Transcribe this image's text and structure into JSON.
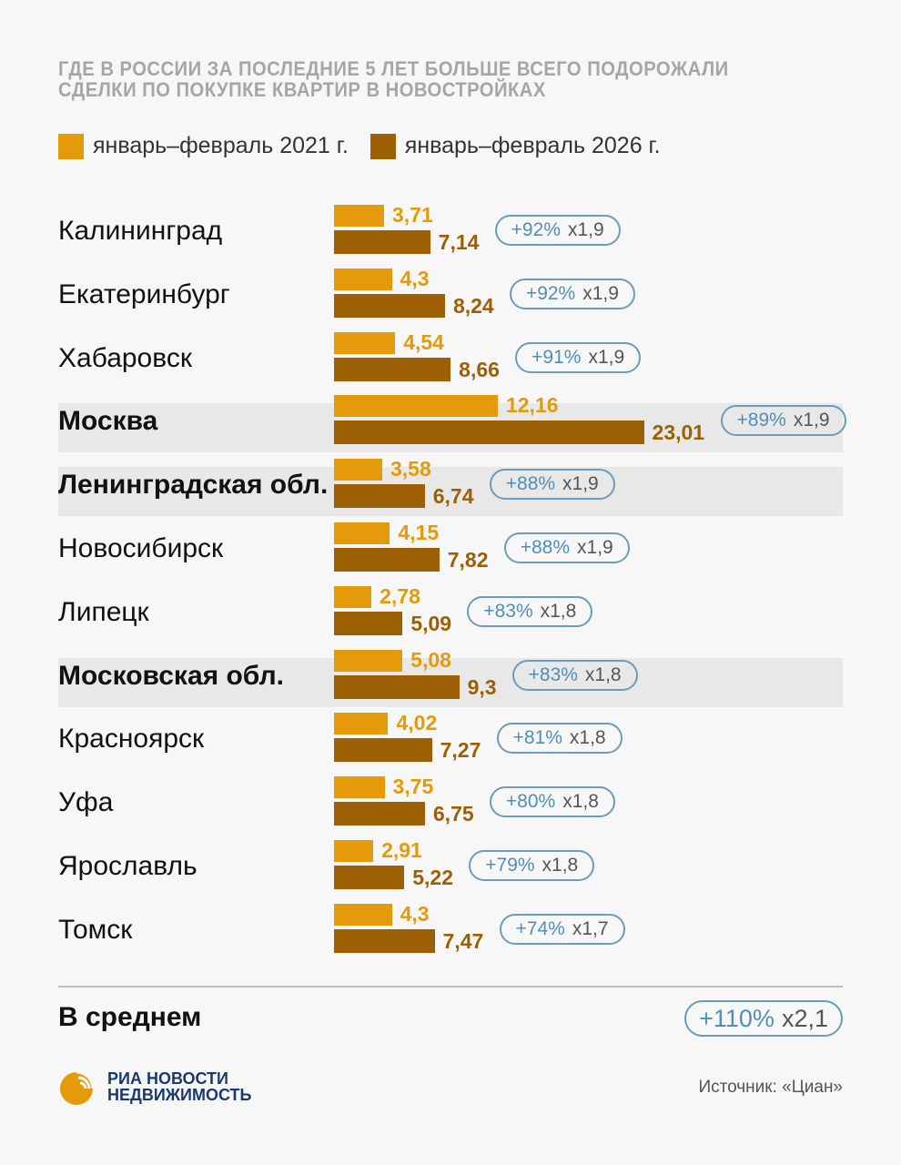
{
  "title_line1": "ГДЕ В РОССИИ ЗА ПОСЛЕДНИЕ 5 ЛЕТ БОЛЬШЕ ВСЕГО ПОДОРОЖАЛИ",
  "title_line2": "СДЕЛКИ ПО ПОКУПКЕ КВАРТИР В НОВОСТРОЙКАХ",
  "legend": [
    {
      "label": "январь–февраль 2021 г.",
      "color": "#e59a0a"
    },
    {
      "label": "январь–февраль 2026 г.",
      "color": "#9c5f04"
    }
  ],
  "chart_data": {
    "type": "bar",
    "orientation": "horizontal",
    "title": "ГДЕ В РОССИИ ЗА ПОСЛЕДНИЕ 5 ЛЕТ БОЛЬШЕ ВСЕГО ПОДОРОЖАЛИ СДЕЛКИ ПО ПОКУПКЕ КВАРТИР В НОВОСТРОЙКАХ",
    "categories": [
      "Калининград",
      "Екатеринбург",
      "Хабаровск",
      "Москва",
      "Ленинградская обл.",
      "Новосибирск",
      "Липецк",
      "Московская обл.",
      "Красноярск",
      "Уфа",
      "Ярославль",
      "Томск"
    ],
    "highlighted": [
      false,
      false,
      false,
      true,
      true,
      false,
      false,
      true,
      false,
      false,
      false,
      false
    ],
    "series": [
      {
        "name": "январь–февраль 2021 г.",
        "values": [
          3.71,
          4.3,
          4.54,
          12.16,
          3.58,
          4.15,
          2.78,
          5.08,
          4.02,
          3.75,
          2.91,
          4.3
        ],
        "labels": [
          "3,71",
          "4,3",
          "4,54",
          "12,16",
          "3,58",
          "4,15",
          "2,78",
          "5,08",
          "4,02",
          "3,75",
          "2,91",
          "4,3"
        ]
      },
      {
        "name": "январь–февраль 2026 г.",
        "values": [
          7.14,
          8.24,
          8.66,
          23.01,
          6.74,
          7.82,
          5.09,
          9.3,
          7.27,
          6.75,
          5.22,
          7.47
        ],
        "labels": [
          "7,14",
          "8,24",
          "8,66",
          "23,01",
          "6,74",
          "7,82",
          "5,09",
          "9,3",
          "7,27",
          "6,75",
          "5,22",
          "7,47"
        ]
      }
    ],
    "growth_pct": [
      "+92%",
      "+92%",
      "+91%",
      "+89%",
      "+88%",
      "+88%",
      "+83%",
      "+83%",
      "+81%",
      "+80%",
      "+79%",
      "+74%"
    ],
    "multiplier": [
      "x1,9",
      "x1,9",
      "x1,9",
      "x1,9",
      "x1,9",
      "x1,9",
      "x1,8",
      "x1,8",
      "x1,8",
      "x1,8",
      "x1,8",
      "x1,7"
    ],
    "xlim": [
      0,
      25
    ]
  },
  "average": {
    "label": "В среднем",
    "pct": "+110%",
    "mul": "x2,1"
  },
  "logo": {
    "line1": "РИА НОВОСТИ",
    "line2": "НЕДВИЖИМОСТЬ",
    "color": "#e59a0a"
  },
  "source": "Источник: «Циан»"
}
